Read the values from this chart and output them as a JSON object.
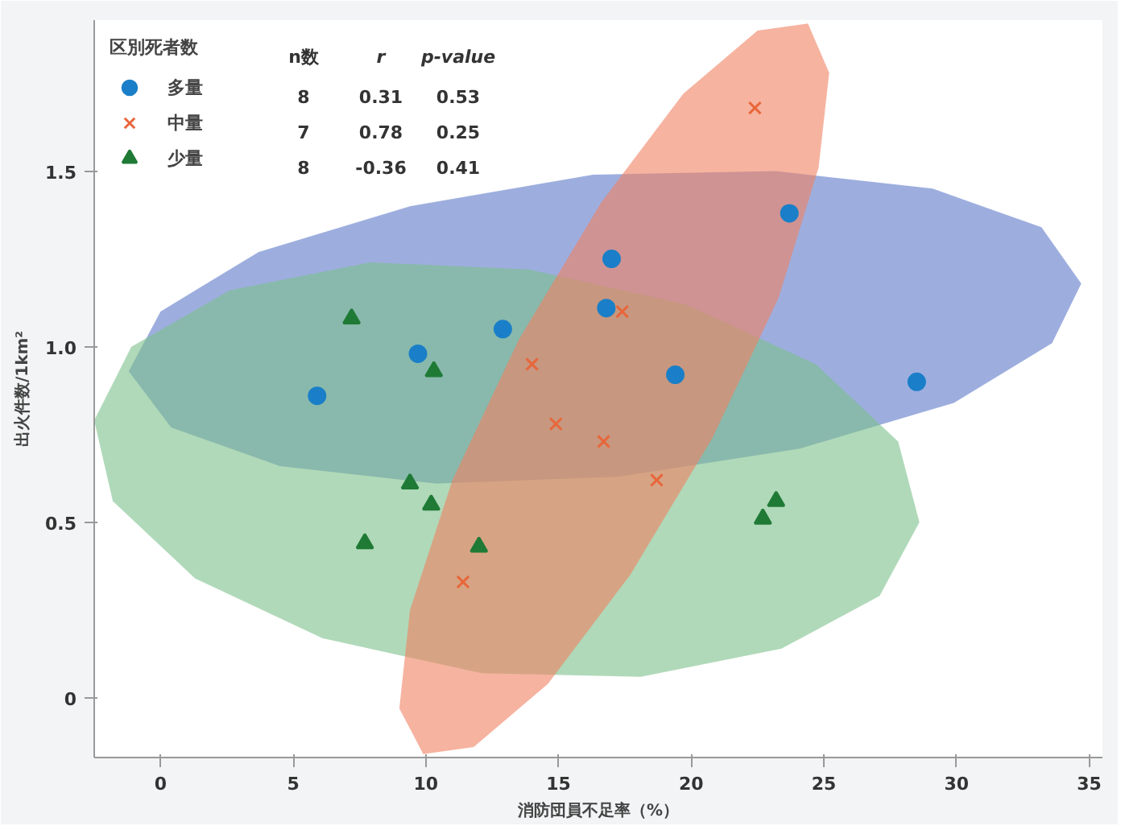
{
  "chart_data": {
    "type": "scatter",
    "xlabel": "消防団員不足率（%）",
    "ylabel": "出火件数/1km²",
    "legend_title": "区別死者数",
    "xlim": [
      -2.5,
      35.5
    ],
    "ylim": [
      -0.17,
      1.93
    ],
    "xticks": [
      0,
      5,
      10,
      15,
      20,
      25,
      30,
      35
    ],
    "yticks": [
      0,
      {
        "value": 0.5,
        "label": "0.5"
      },
      {
        "value": 1.0,
        "label": "1.0"
      },
      {
        "value": 1.5,
        "label": "1.5"
      }
    ],
    "grid": false,
    "legend": "top left",
    "annotations": [
      "n数",
      "r",
      "p-value",
      "8",
      "0.31",
      "0.53",
      "7",
      "0.78",
      "0.25",
      "8",
      "-0.36",
      "0.41"
    ],
    "series": [
      {
        "type": "area",
        "color": "#5b78c8",
        "x": [
          34.7,
          33.6,
          29.9,
          24.1,
          17.3,
          10.4,
          4.5,
          0.4,
          -1.2,
          0.0,
          3.7,
          9.4,
          16.3,
          23.2,
          29.1,
          33.2
        ],
        "values": [
          1.18,
          1.01,
          0.84,
          0.71,
          0.63,
          0.61,
          0.66,
          0.77,
          0.93,
          1.1,
          1.27,
          1.4,
          1.49,
          1.5,
          1.45,
          1.34
        ]
      },
      {
        "type": "area",
        "color": "#7cc08a",
        "x": [
          28.6,
          27.1,
          23.4,
          18.1,
          12.1,
          6.1,
          1.3,
          -1.8,
          -2.5,
          -1.1,
          2.6,
          7.9,
          13.9,
          19.8,
          24.7,
          27.8
        ],
        "values": [
          0.5,
          0.29,
          0.14,
          0.06,
          0.07,
          0.17,
          0.34,
          0.56,
          0.79,
          1.0,
          1.16,
          1.24,
          1.22,
          1.12,
          0.95,
          0.73
        ]
      },
      {
        "type": "area",
        "color": "#f08060",
        "x": [
          24.4,
          25.2,
          24.8,
          23.3,
          20.8,
          17.7,
          14.6,
          11.8,
          9.9,
          9.0,
          9.4,
          11.0,
          13.5,
          16.6,
          19.7,
          22.5
        ],
        "values": [
          1.92,
          1.78,
          1.51,
          1.14,
          0.74,
          0.35,
          0.04,
          -0.14,
          -0.16,
          -0.03,
          0.25,
          0.62,
          1.02,
          1.41,
          1.72,
          1.9
        ]
      },
      {
        "name": "多量",
        "color": "#1a7fc8",
        "marker": "circle",
        "x": [
          5.9,
          9.7,
          12.9,
          17.0,
          16.8,
          19.4,
          23.7,
          28.5
        ],
        "values": [
          0.86,
          0.98,
          1.05,
          1.25,
          1.11,
          0.92,
          1.38,
          0.9
        ]
      },
      {
        "name": "中量",
        "color": "#e8663a",
        "marker": "cross",
        "x": [
          22.4,
          17.4,
          14.0,
          14.9,
          16.7,
          18.7,
          11.4
        ],
        "values": [
          1.68,
          1.1,
          0.95,
          0.78,
          0.73,
          0.62,
          0.33
        ]
      },
      {
        "name": "少量",
        "color": "#1f7a36",
        "marker": "triangle",
        "x": [
          7.2,
          10.3,
          9.4,
          10.2,
          7.7,
          12.0,
          22.7,
          23.2
        ],
        "values": [
          1.08,
          0.93,
          0.61,
          0.55,
          0.44,
          0.43,
          0.51,
          0.56
        ]
      }
    ]
  }
}
